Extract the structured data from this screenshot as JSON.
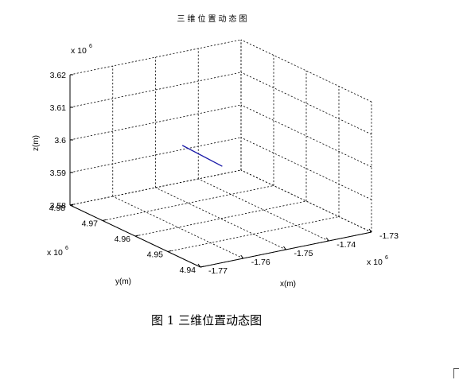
{
  "chart_data": {
    "type": "line3d",
    "title": "三维位置动态图",
    "xlabel": "x(m)",
    "ylabel": "y(m)",
    "zlabel": "z(m)",
    "x_exponent": "x 10",
    "x_exponent_power": "6",
    "y_exponent": "x 10",
    "y_exponent_power": "6",
    "z_exponent": "x 10",
    "z_exponent_power": "6",
    "xlim": [
      -1.77,
      -1.73
    ],
    "ylim": [
      4.94,
      4.98
    ],
    "zlim": [
      3.58,
      3.62
    ],
    "x_ticks": [
      "-1.77",
      "-1.76",
      "-1.75",
      "-1.74",
      "-1.73"
    ],
    "y_ticks": [
      "4.94",
      "4.95",
      "4.96",
      "4.97",
      "4.98"
    ],
    "z_ticks": [
      "3.58",
      "3.59",
      "3.6",
      "3.61",
      "3.62"
    ],
    "grid": true,
    "series": [
      {
        "color": "#1a1aa8",
        "x": [
          -1.7525,
          -1.7469
        ],
        "y": [
          4.9685,
          4.9636
        ],
        "z": [
          3.5991,
          3.5935
        ]
      }
    ]
  },
  "caption": "图 1  三维位置动态图"
}
